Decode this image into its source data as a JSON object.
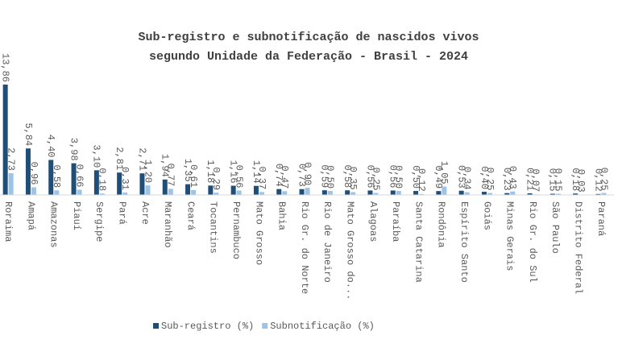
{
  "chart_data": {
    "type": "bar",
    "title": "Sub-registro e subnotificação de nascidos vivos",
    "subtitle": "segundo Unidade da Federação - Brasil - 2024",
    "categories": [
      "Roraima",
      "Amapá",
      "Amazonas",
      "Piauí",
      "Sergipe",
      "Pará",
      "Acre",
      "Maranhão",
      "Ceará",
      "Tocantins",
      "Pernambuco",
      "Mato Grosso",
      "Bahia",
      "Rio Gr. do Norte",
      "Rio de Janeiro",
      "Mato Grosso do...",
      "Alagoas",
      "Paraíba",
      "Santa Catarina",
      "Rondônia",
      "Espírito Santo",
      "Goiás",
      "Minas Gerais",
      "Rio Gr. do Sul",
      "São Paulo",
      "Distrito Federal",
      "Paraná"
    ],
    "series": [
      {
        "name": "Sub-registro (%)",
        "color": "#1f4e79",
        "values": [
          13.86,
          5.84,
          4.4,
          3.98,
          3.1,
          2.81,
          2.71,
          1.94,
          1.35,
          1.18,
          1.16,
          1.14,
          0.74,
          0.73,
          0.59,
          0.58,
          0.56,
          0.56,
          0.5,
          0.49,
          0.53,
          0.4,
          0.23,
          0.21,
          0.15,
          0.18,
          0.12
        ],
        "value_labels": [
          "13,86",
          "5,84",
          "4,40",
          "3,98",
          "3,10",
          "2,81",
          "2,71",
          "1,94",
          "1,35",
          "1,18",
          "1,16",
          "1,14",
          "0,74",
          "0,73",
          "0,59",
          "0,58",
          "0,56",
          "0,56",
          "0,50",
          "0,49",
          "0,53",
          "0,40",
          "0,23",
          "0,21",
          "0,15",
          "0,18",
          "0,12"
        ]
      },
      {
        "name": "Subnotificação (%)",
        "color": "#9dc3e6",
        "values": [
          2.73,
          0.96,
          0.58,
          0.66,
          0.18,
          0.31,
          1.2,
          0.77,
          0.61,
          0.29,
          0.56,
          0.37,
          0.47,
          0.9,
          0.5,
          0.35,
          0.25,
          0.5,
          0.12,
          1.05,
          0.34,
          0.25,
          0.43,
          0.07,
          0.15,
          0.03,
          0.25
        ],
        "value_labels": [
          "2,73",
          "0,96",
          "0,58",
          "0,66",
          "0,18",
          "0,31",
          "1,20",
          "0,77",
          "0,61",
          "0,29",
          "0,56",
          "0,37",
          "0,47",
          "0,90",
          "0,50",
          "0,35",
          "0,25",
          "0,50",
          "0,12",
          "1,05",
          "0,34",
          "0,25",
          "0,43",
          "0,07",
          "0,15",
          "0,03",
          "0,25"
        ]
      }
    ],
    "legend": "bottom"
  }
}
